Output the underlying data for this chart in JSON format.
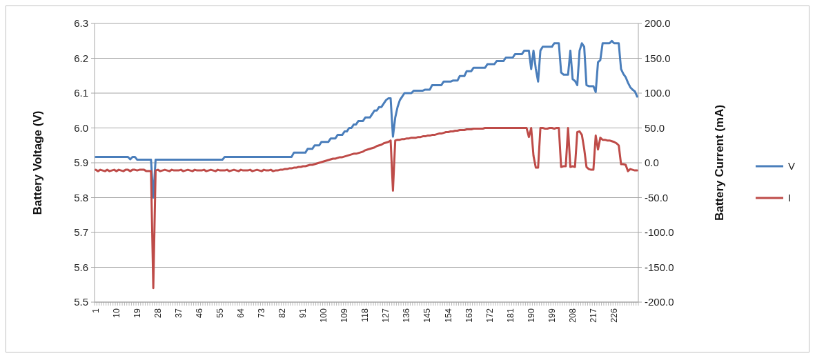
{
  "chart_data": {
    "type": "line",
    "ylabel": "Battery Voltage (V)",
    "y2label": "Battery Current (mA)",
    "grid": "y",
    "legend": "right",
    "ylim": [
      5.5,
      6.3
    ],
    "yticks": [
      5.5,
      5.6,
      5.7,
      5.8,
      5.9,
      {
        "value": 6,
        "label": "6.0"
      },
      6.1,
      6.2,
      6.3
    ],
    "y2lim": [
      -200,
      200
    ],
    "y2ticks": [
      {
        "value": -200,
        "label": "-200.0"
      },
      {
        "value": -150,
        "label": "-150.0"
      },
      {
        "value": -100,
        "label": "-100.0"
      },
      {
        "value": -50,
        "label": "-50.0"
      },
      {
        "value": 0,
        "label": "0.0"
      },
      {
        "value": 50,
        "label": "50.0"
      },
      {
        "value": 100,
        "label": "100.0"
      },
      {
        "value": 150,
        "label": "150.0"
      },
      {
        "value": 200,
        "label": "200.0"
      }
    ],
    "categories": [
      "1",
      null,
      null,
      null,
      null,
      null,
      null,
      null,
      null,
      "10",
      null,
      null,
      null,
      null,
      null,
      null,
      null,
      null,
      "19",
      null,
      null,
      null,
      null,
      null,
      null,
      null,
      null,
      "28",
      null,
      null,
      null,
      null,
      null,
      null,
      null,
      null,
      "37",
      null,
      null,
      null,
      null,
      null,
      null,
      null,
      null,
      "46",
      null,
      null,
      null,
      null,
      null,
      null,
      null,
      null,
      "55",
      null,
      null,
      null,
      null,
      null,
      null,
      null,
      null,
      "64",
      null,
      null,
      null,
      null,
      null,
      null,
      null,
      null,
      "73",
      null,
      null,
      null,
      null,
      null,
      null,
      null,
      null,
      "82",
      null,
      null,
      null,
      null,
      null,
      null,
      null,
      null,
      "91",
      null,
      null,
      null,
      null,
      null,
      null,
      null,
      null,
      "100",
      null,
      null,
      null,
      null,
      null,
      null,
      null,
      null,
      "109",
      null,
      null,
      null,
      null,
      null,
      null,
      null,
      null,
      "118",
      null,
      null,
      null,
      null,
      null,
      null,
      null,
      null,
      "127",
      null,
      null,
      null,
      null,
      null,
      null,
      null,
      null,
      "136",
      null,
      null,
      null,
      null,
      null,
      null,
      null,
      null,
      "145",
      null,
      null,
      null,
      null,
      null,
      null,
      null,
      null,
      "154",
      null,
      null,
      null,
      null,
      null,
      null,
      null,
      null,
      "163",
      null,
      null,
      null,
      null,
      null,
      null,
      null,
      null,
      "172",
      null,
      null,
      null,
      null,
      null,
      null,
      null,
      null,
      "181",
      null,
      null,
      null,
      null,
      null,
      null,
      null,
      null,
      "190",
      null,
      null,
      null,
      null,
      null,
      null,
      null,
      null,
      "199",
      null,
      null,
      null,
      null,
      null,
      null,
      null,
      null,
      "208",
      null,
      null,
      null,
      null,
      null,
      null,
      null,
      null,
      "217",
      null,
      null,
      null,
      null,
      null,
      null,
      null,
      null,
      "226",
      null,
      null,
      null,
      null,
      null,
      null,
      null,
      null,
      null,
      null
    ],
    "series": [
      {
        "name": "V",
        "color": "#4a7ebb",
        "values": [
          5.917,
          5.917,
          5.917,
          5.917,
          5.917,
          5.917,
          5.917,
          5.917,
          5.917,
          5.917,
          5.917,
          5.917,
          5.917,
          5.917,
          5.917,
          5.91,
          5.917,
          5.917,
          5.909,
          5.909,
          5.909,
          5.909,
          5.909,
          5.909,
          5.909,
          5.8,
          5.909,
          5.909,
          5.909,
          5.909,
          5.909,
          5.909,
          5.909,
          5.909,
          5.909,
          5.909,
          5.909,
          5.909,
          5.909,
          5.909,
          5.909,
          5.909,
          5.909,
          5.909,
          5.909,
          5.909,
          5.909,
          5.909,
          5.909,
          5.909,
          5.909,
          5.909,
          5.909,
          5.909,
          5.909,
          5.909,
          5.917,
          5.917,
          5.917,
          5.917,
          5.917,
          5.917,
          5.917,
          5.917,
          5.917,
          5.917,
          5.917,
          5.917,
          5.917,
          5.917,
          5.917,
          5.917,
          5.917,
          5.917,
          5.917,
          5.917,
          5.917,
          5.917,
          5.917,
          5.917,
          5.917,
          5.917,
          5.917,
          5.917,
          5.917,
          5.917,
          5.929,
          5.929,
          5.929,
          5.929,
          5.929,
          5.929,
          5.94,
          5.94,
          5.94,
          5.95,
          5.95,
          5.95,
          5.96,
          5.96,
          5.96,
          5.96,
          5.97,
          5.97,
          5.97,
          5.98,
          5.98,
          5.98,
          5.99,
          5.99,
          6.0,
          6.0,
          6.01,
          6.01,
          6.02,
          6.02,
          6.02,
          6.03,
          6.03,
          6.03,
          6.04,
          6.05,
          6.05,
          6.06,
          6.06,
          6.07,
          6.08,
          6.085,
          6.085,
          5.975,
          6.03,
          6.06,
          6.08,
          6.09,
          6.1,
          6.1,
          6.1,
          6.1,
          6.107,
          6.107,
          6.107,
          6.107,
          6.107,
          6.11,
          6.11,
          6.11,
          6.123,
          6.123,
          6.123,
          6.123,
          6.123,
          6.133,
          6.133,
          6.133,
          6.133,
          6.136,
          6.136,
          6.136,
          6.149,
          6.149,
          6.149,
          6.163,
          6.163,
          6.163,
          6.173,
          6.173,
          6.173,
          6.173,
          6.173,
          6.173,
          6.183,
          6.183,
          6.183,
          6.183,
          6.192,
          6.192,
          6.192,
          6.192,
          6.202,
          6.202,
          6.202,
          6.202,
          6.212,
          6.212,
          6.212,
          6.212,
          6.222,
          6.222,
          6.222,
          6.169,
          6.222,
          6.17,
          6.133,
          6.222,
          6.233,
          6.233,
          6.233,
          6.233,
          6.233,
          6.243,
          6.243,
          6.243,
          6.159,
          6.153,
          6.153,
          6.153,
          6.222,
          6.14,
          6.135,
          6.123,
          6.222,
          6.243,
          6.233,
          6.123,
          6.12,
          6.12,
          6.12,
          6.103,
          6.189,
          6.195,
          6.243,
          6.243,
          6.243,
          6.243,
          6.25,
          6.243,
          6.243,
          6.243,
          6.169,
          6.155,
          6.146,
          6.13,
          6.117,
          6.11,
          6.105,
          6.09
        ]
      },
      {
        "name": "I",
        "color": "#be4b48",
        "axis": "y2",
        "values": [
          -10,
          -12,
          -10,
          -11,
          -12,
          -10,
          -12,
          -11,
          -10,
          -12,
          -10,
          -11,
          -12,
          -10,
          -10,
          -12,
          -10,
          -10,
          -11,
          -10,
          -10,
          -10,
          -12,
          -12,
          -12,
          -180,
          -11,
          -10,
          -12,
          -11,
          -10,
          -11,
          -12,
          -10,
          -11,
          -11,
          -11,
          -10,
          -12,
          -11,
          -10,
          -11,
          -12,
          -10,
          -11,
          -11,
          -11,
          -10,
          -12,
          -11,
          -10,
          -11,
          -12,
          -10,
          -11,
          -11,
          -11,
          -10,
          -12,
          -11,
          -10,
          -11,
          -12,
          -10,
          -11,
          -11,
          -11,
          -10,
          -12,
          -11,
          -10,
          -11,
          -12,
          -10,
          -11,
          -11,
          -10,
          -12,
          -11,
          -11,
          -10,
          -10,
          -9,
          -9,
          -8,
          -8,
          -7,
          -7,
          -6,
          -6,
          -5,
          -5,
          -4,
          -3,
          -3,
          -2,
          -1,
          0,
          1,
          2,
          3,
          4,
          5,
          6,
          6,
          7,
          8,
          8,
          9,
          10,
          11,
          12,
          13,
          13,
          14,
          15,
          16,
          18,
          19,
          20,
          21,
          22,
          24,
          25,
          26,
          28,
          29,
          30,
          32,
          -40,
          32,
          33,
          33,
          34,
          34,
          35,
          35,
          36,
          36,
          36,
          37,
          37,
          38,
          38,
          39,
          39,
          40,
          40,
          41,
          42,
          42,
          43,
          44,
          44,
          45,
          45,
          46,
          46,
          47,
          47,
          47,
          48,
          48,
          48,
          49,
          49,
          49,
          49,
          49,
          50,
          50,
          50,
          50,
          50,
          50,
          50,
          50,
          50,
          50,
          50,
          50,
          50,
          50,
          50,
          50,
          50,
          50,
          50,
          37,
          50,
          10,
          -7,
          -7,
          50,
          50,
          49,
          49,
          50,
          50,
          49,
          50,
          50,
          -6,
          -5,
          -5,
          50,
          -6,
          -5,
          -6,
          44,
          45,
          40,
          20,
          -6,
          -9,
          -10,
          -10,
          39,
          19,
          36,
          33,
          33,
          32,
          32,
          31,
          30,
          28,
          25,
          -2,
          -2,
          -3,
          -12,
          -9,
          -10,
          -11,
          -11
        ]
      }
    ]
  }
}
